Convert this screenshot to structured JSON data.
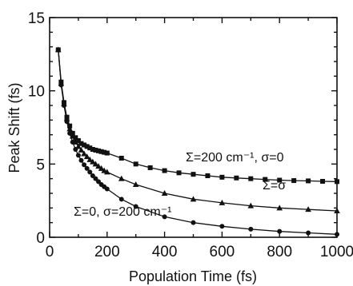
{
  "chart_data": {
    "type": "line",
    "title": "",
    "xlabel": "Population Time (fs)",
    "ylabel": "Peak Shift (fs)",
    "xlim": [
      0,
      1000
    ],
    "ylim": [
      0,
      15
    ],
    "xticks": [
      0,
      200,
      400,
      600,
      800,
      1000
    ],
    "yticks": [
      0,
      5,
      10,
      15
    ],
    "grid": false,
    "series": [
      {
        "marker": "square",
        "x": [
          30,
          40,
          50,
          60,
          70,
          80,
          90,
          100,
          110,
          120,
          130,
          140,
          150,
          160,
          170,
          180,
          190,
          200,
          250,
          300,
          350,
          400,
          450,
          500,
          550,
          600,
          650,
          700,
          750,
          800,
          850,
          900,
          950,
          1000
        ],
        "y": [
          12.8,
          10.6,
          9.2,
          8.2,
          7.6,
          7.1,
          6.8,
          6.6,
          6.4,
          6.3,
          6.2,
          6.1,
          6.0,
          5.95,
          5.9,
          5.85,
          5.8,
          5.75,
          5.4,
          5.0,
          4.75,
          4.55,
          4.4,
          4.3,
          4.2,
          4.1,
          4.05,
          4.0,
          3.95,
          3.9,
          3.87,
          3.85,
          3.82,
          3.8
        ]
      },
      {
        "marker": "triangle",
        "x": [
          30,
          40,
          50,
          60,
          70,
          80,
          90,
          100,
          110,
          120,
          130,
          140,
          150,
          160,
          170,
          180,
          190,
          200,
          250,
          300,
          400,
          500,
          600,
          700,
          800,
          900,
          1000
        ],
        "y": [
          12.8,
          10.5,
          9.1,
          8.1,
          7.4,
          6.9,
          6.5,
          6.2,
          5.95,
          5.7,
          5.5,
          5.3,
          5.15,
          5.0,
          4.85,
          4.7,
          4.55,
          4.45,
          4.0,
          3.6,
          3.0,
          2.6,
          2.35,
          2.15,
          2.0,
          1.9,
          1.8
        ]
      },
      {
        "marker": "circle",
        "x": [
          30,
          40,
          50,
          60,
          70,
          80,
          90,
          100,
          110,
          120,
          130,
          140,
          150,
          160,
          170,
          180,
          190,
          200,
          250,
          300,
          400,
          500,
          600,
          700,
          800,
          900,
          1000
        ],
        "y": [
          12.8,
          10.4,
          9.0,
          7.9,
          7.1,
          6.5,
          6.0,
          5.6,
          5.25,
          4.95,
          4.7,
          4.45,
          4.2,
          4.0,
          3.8,
          3.6,
          3.45,
          3.3,
          2.6,
          2.1,
          1.4,
          1.0,
          0.75,
          0.55,
          0.4,
          0.3,
          0.2
        ]
      }
    ],
    "annotations": [
      {
        "text": "Σ=200 cm⁻¹, σ=0"
      },
      {
        "text": "Σ=σ"
      },
      {
        "text": "Σ=0, σ=200 cm⁻¹"
      }
    ]
  }
}
